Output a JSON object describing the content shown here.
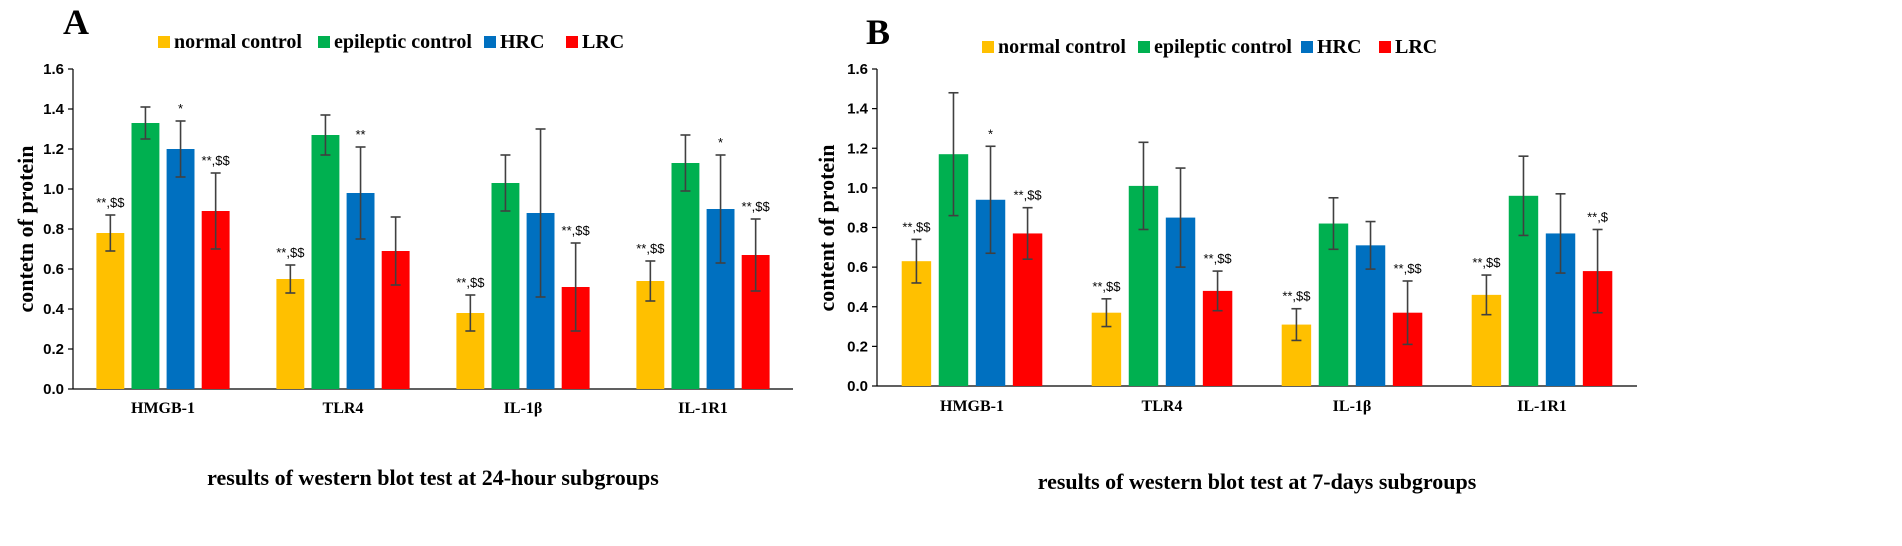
{
  "series_colors": [
    "#FFC000",
    "#00B050",
    "#0070C0",
    "#FF0000"
  ],
  "error_color": "#404040",
  "chart_data": [
    {
      "type": "bar",
      "panel": "A",
      "legend_position": "top",
      "categories": [
        "HMGB-1",
        "TLR4",
        "IL-1β",
        "IL-1R1"
      ],
      "ylabel": "contetn of protein",
      "xlabel": "results of western blot test at 24-hour subgroups",
      "ylim": [
        0,
        1.6
      ],
      "yticks": [
        "0.0",
        "0.2",
        "0.4",
        "0.6",
        "0.8",
        "1.0",
        "1.2",
        "1.4",
        "1.6"
      ],
      "series": [
        {
          "name": "normal control",
          "values": [
            0.78,
            0.55,
            0.38,
            0.54
          ],
          "errors": [
            0.09,
            0.07,
            0.09,
            0.1
          ],
          "labels": [
            "**,$$",
            "**,$$",
            "**,$$",
            "**,$$"
          ]
        },
        {
          "name": "epileptic control",
          "values": [
            1.33,
            1.27,
            1.03,
            1.13
          ],
          "errors": [
            0.08,
            0.1,
            0.14,
            0.14
          ],
          "labels": [
            "",
            "",
            "",
            ""
          ]
        },
        {
          "name": "HRC",
          "values": [
            1.2,
            0.98,
            0.88,
            0.9
          ],
          "errors": [
            0.14,
            0.23,
            0.42,
            0.27
          ],
          "labels": [
            "*",
            "**",
            "",
            "*"
          ]
        },
        {
          "name": "LRC",
          "values": [
            0.89,
            0.69,
            0.51,
            0.67
          ],
          "errors": [
            0.19,
            0.17,
            0.22,
            0.18
          ],
          "labels": [
            "**,$$",
            "",
            "**,$$",
            "**,$$"
          ]
        }
      ]
    },
    {
      "type": "bar",
      "panel": "B",
      "legend_position": "top",
      "categories": [
        "HMGB-1",
        "TLR4",
        "IL-1β",
        "IL-1R1"
      ],
      "ylabel": "content of protein",
      "xlabel": "results of western blot test at 7-days subgroups",
      "ylim": [
        0,
        1.6
      ],
      "yticks": [
        "0.0",
        "0.2",
        "0.4",
        "0.6",
        "0.8",
        "1.0",
        "1.2",
        "1.4",
        "1.6"
      ],
      "series": [
        {
          "name": "normal control",
          "values": [
            0.63,
            0.37,
            0.31,
            0.46
          ],
          "errors": [
            0.11,
            0.07,
            0.08,
            0.1
          ],
          "labels": [
            "**,$$",
            "**,$$",
            "**,$$",
            "**,$$"
          ]
        },
        {
          "name": "epileptic control",
          "values": [
            1.17,
            1.01,
            0.82,
            0.96
          ],
          "errors": [
            0.31,
            0.22,
            0.13,
            0.2
          ],
          "labels": [
            "",
            "",
            "",
            ""
          ]
        },
        {
          "name": "HRC",
          "values": [
            0.94,
            0.85,
            0.71,
            0.77
          ],
          "errors": [
            0.27,
            0.25,
            0.12,
            0.2
          ],
          "labels": [
            "*",
            "",
            "",
            ""
          ]
        },
        {
          "name": "LRC",
          "values": [
            0.77,
            0.48,
            0.37,
            0.58
          ],
          "errors": [
            0.13,
            0.1,
            0.16,
            0.21
          ],
          "labels": [
            "**,$$",
            "**,$$",
            "**,$$",
            "**,$"
          ]
        }
      ]
    }
  ]
}
